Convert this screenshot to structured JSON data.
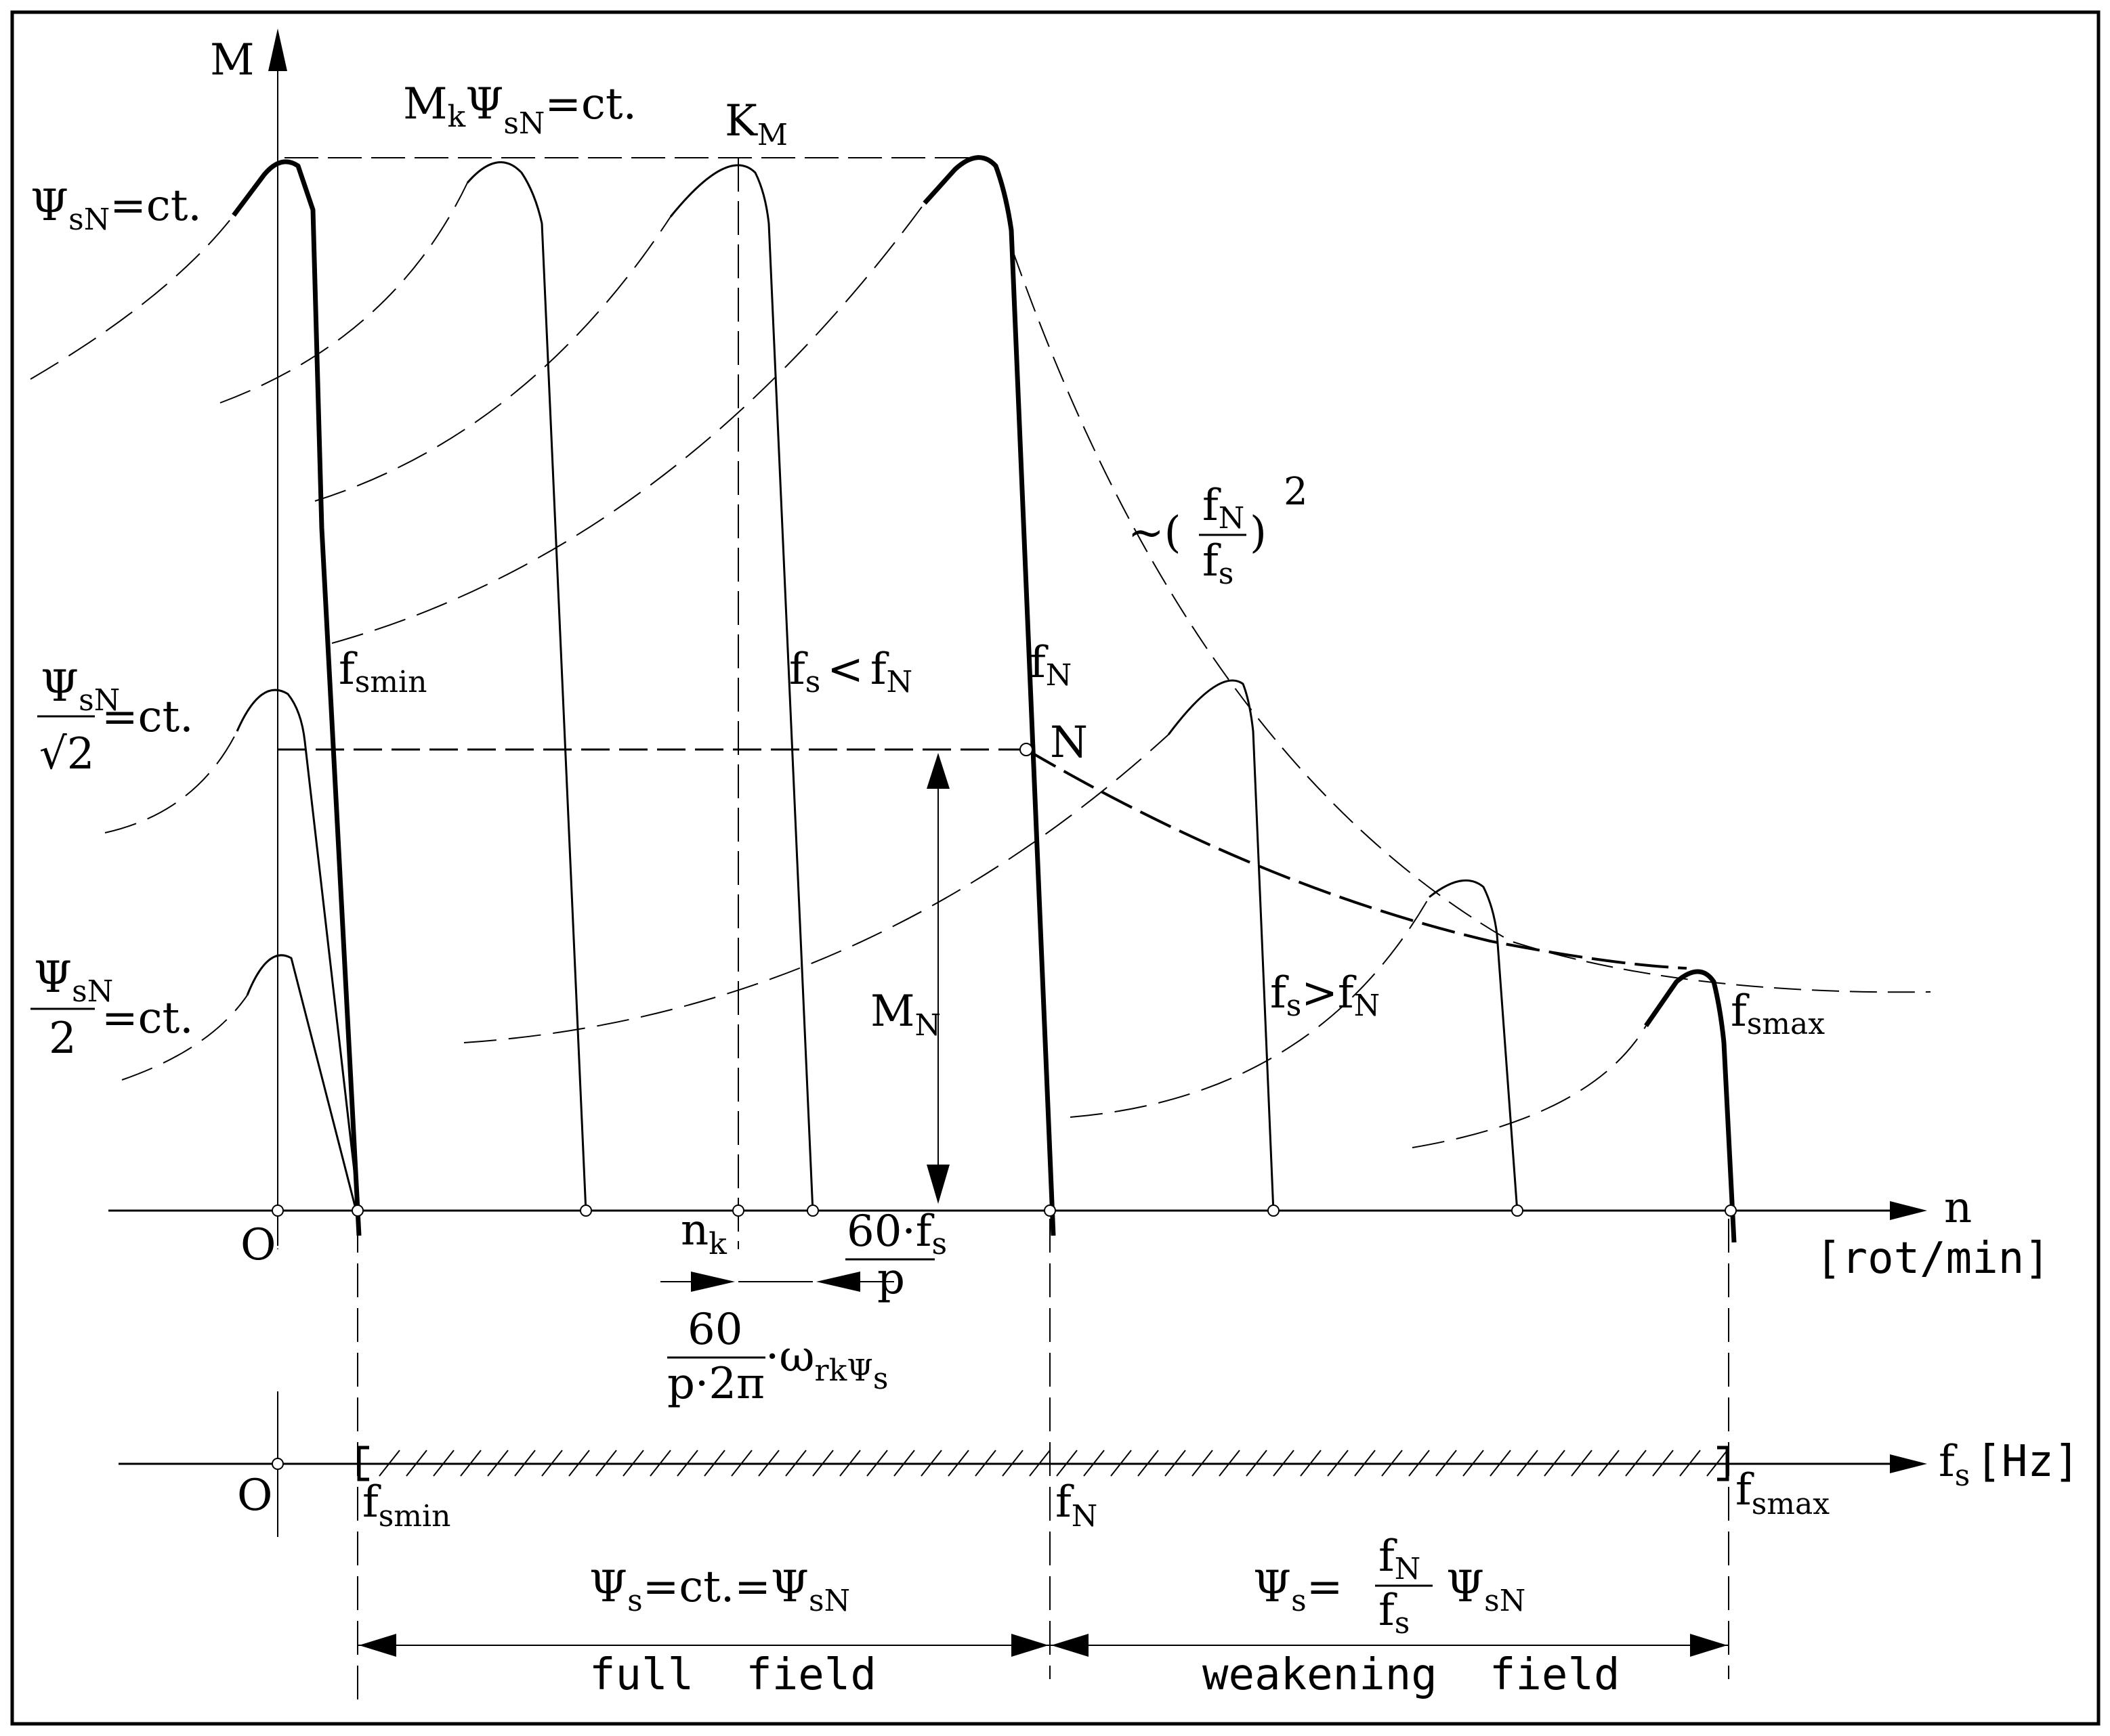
{
  "axes": {
    "y_label": "M",
    "x_label": "n",
    "x_unit": "[rot/min]",
    "origin_label": "O",
    "fs_axis_label": "f",
    "fs_axis_sub": "s",
    "fs_axis_unit": "[Hz]",
    "fs_origin_label": "O"
  },
  "curve_labels": {
    "psi_full": {
      "sym": "Ψ",
      "sub": "sN",
      "rest": "=ct."
    },
    "psi_root2": {
      "num": "Ψ",
      "num_sub": "sN",
      "den": "√2",
      "rest": "=ct."
    },
    "psi_half": {
      "num": "Ψ",
      "num_sub": "sN",
      "den": "2",
      "rest": "=ct."
    },
    "mk_label": {
      "a": "M",
      "a_sub": "k",
      "b": "Ψ",
      "b_sub": "sN",
      "rest": "=ct."
    },
    "km_label": {
      "a": "K",
      "a_sub": "M"
    },
    "hyperbola": {
      "prefix": "~(",
      "num": "f",
      "num_sub": "N",
      "den": "f",
      "den_sub": "s",
      "suffix": ")",
      "exp": "2"
    },
    "fsmin_top": {
      "a": "f",
      "a_sub": "smin"
    },
    "fs_lt_fn": {
      "a": "f",
      "a_sub": "s",
      "mid": "<",
      "b": "f",
      "b_sub": "N"
    },
    "fn_top": {
      "a": "f",
      "a_sub": "N"
    },
    "point_n": "N",
    "mn": {
      "a": "M",
      "a_sub": "N"
    },
    "fs_gt_fn": {
      "a": "f",
      "a_sub": "s",
      "mid": ">",
      "b": "f",
      "b_sub": "N"
    },
    "fsmax_top": {
      "a": "f",
      "a_sub": "smax"
    }
  },
  "x_annotations": {
    "nk": {
      "a": "n",
      "a_sub": "k"
    },
    "sixty_fs_p": {
      "num": "60·f",
      "num_sub": "s",
      "den": "p"
    },
    "slip_expr": {
      "num": "60",
      "den": "p·2π",
      "rest": "·ω",
      "rest_sub": "rkΨ",
      "rest_sub2": "s"
    }
  },
  "fs_axis_labels": {
    "fsmin": {
      "a": "f",
      "a_sub": "smin"
    },
    "fn": {
      "a": "f",
      "a_sub": "N"
    },
    "fsmax": {
      "a": "f",
      "a_sub": "smax"
    }
  },
  "regions": {
    "full": {
      "eq_a": "Ψ",
      "eq_a_sub": "s",
      "eq_rest": "=ct.=",
      "eq_b": "Ψ",
      "eq_b_sub": "sN",
      "name": "full  field"
    },
    "weak": {
      "eq_a": "Ψ",
      "eq_a_sub": "s",
      "eq_eq": "=",
      "frac_num": "f",
      "frac_num_sub": "N",
      "frac_den": "f",
      "frac_den_sub": "s",
      "eq_b": "Ψ",
      "eq_b_sub": "sN",
      "name": "weakening  field"
    }
  }
}
